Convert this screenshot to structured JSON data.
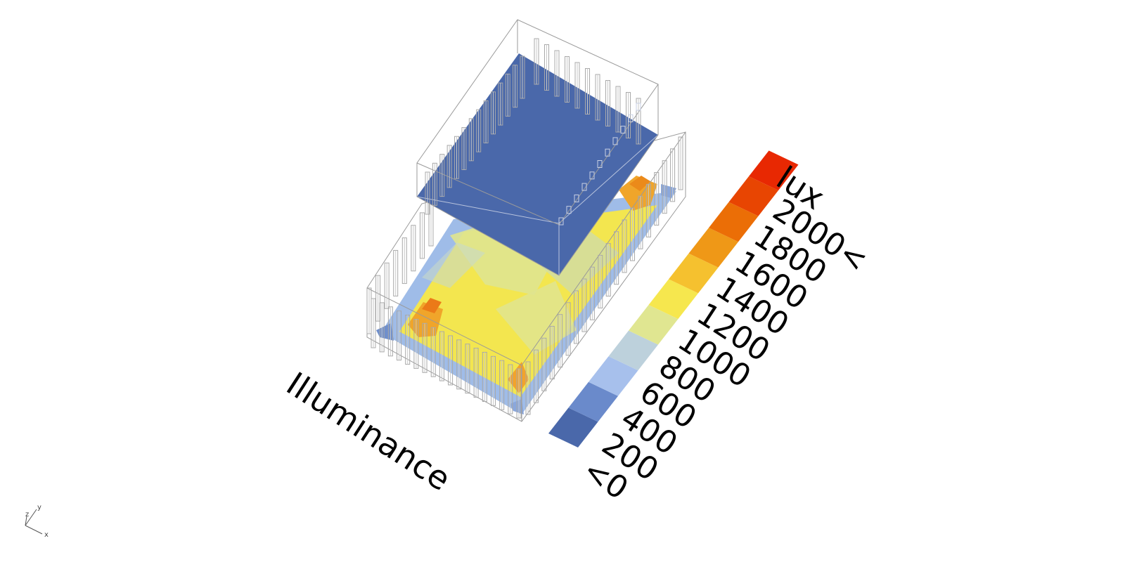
{
  "title": "Illuminance",
  "legend": {
    "unit": "lux",
    "labels": [
      "<0",
      "200",
      "400",
      "600",
      "800",
      "1000",
      "1200",
      "1400",
      "1600",
      "1800",
      "2000<"
    ],
    "colors": [
      "#4a68aa",
      "#6a8acb",
      "#a7c0ec",
      "#bdd1dc",
      "#e0e691",
      "#f6e74e",
      "#f5c12f",
      "#ef9817",
      "#eb6e06",
      "#e84502",
      "#e82802"
    ]
  },
  "axes": {
    "x": "x",
    "y": "y",
    "z": "z"
  },
  "colors": {
    "roof": "#4a68aa",
    "wire": "#9a9a9a",
    "floor_base": "#f3e64f"
  }
}
